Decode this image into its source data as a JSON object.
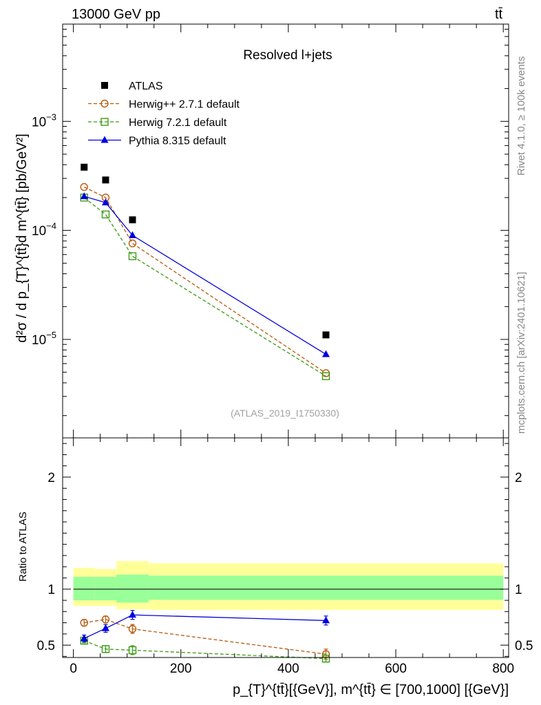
{
  "header": {
    "left": "13000 GeV pp",
    "right": "tt̄"
  },
  "side": {
    "rivet": "Rivet 4.1.0, ≥ 100k events",
    "mcplots": "mcplots.cern.ch [arXiv:2401.10621]"
  },
  "colors": {
    "atlas": "#000000",
    "herwigpp": "#b8580a",
    "herwig7": "#3b9b14",
    "pythia": "#0000e0",
    "band_inner": "#99ff99",
    "band_outer": "#ffff99"
  },
  "chart_data": [
    {
      "type": "scatter",
      "panel": "main",
      "title": "Resolved l+jets",
      "analysis_label": "(ATLAS_2019_I1750330)",
      "ylabel": "d²σ / d p_{T}^{tt̄}d m^{tt̄} [pb/GeV²]",
      "yscale": "log",
      "xlim": [
        -20,
        810
      ],
      "ylim": [
        1.25e-06,
        0.0078
      ],
      "y_ticks": [
        {
          "value": 1e-05,
          "base": "10",
          "exp": "−5"
        },
        {
          "value": 0.0001,
          "base": "10",
          "exp": "−4"
        },
        {
          "value": 0.001,
          "base": "10",
          "exp": "−3"
        }
      ],
      "legend_position": "top-left",
      "series": [
        {
          "name": "ATLAS",
          "key": "atlas",
          "marker": "square-filled",
          "line": "none",
          "x": [
            20,
            60,
            110,
            470
          ],
          "y": [
            0.00038,
            0.00029,
            0.000125,
            1.1e-05
          ]
        },
        {
          "name": "Herwig++ 2.7.1 default",
          "key": "herwigpp",
          "marker": "circle-open",
          "line": "dashed",
          "x": [
            20,
            60,
            110,
            470
          ],
          "y": [
            0.00025,
            0.0002,
            7.6e-05,
            4.9e-06
          ]
        },
        {
          "name": "Herwig 7.2.1 default",
          "key": "herwig7",
          "marker": "square-open",
          "line": "dashed",
          "x": [
            20,
            60,
            110,
            470
          ],
          "y": [
            0.0002,
            0.00014,
            5.8e-05,
            4.6e-06
          ]
        },
        {
          "name": "Pythia 8.315 default",
          "key": "pythia",
          "marker": "triangle-filled",
          "line": "solid",
          "x": [
            20,
            60,
            110,
            470
          ],
          "y": [
            0.000205,
            0.00018,
            9e-05,
            7.3e-06
          ]
        }
      ]
    },
    {
      "type": "scatter",
      "panel": "ratio",
      "ylabel": "Ratio to ATLAS",
      "xlabel": "p_{T}^{tt̄}[{GeV}], m^{tt̄} ∈ [700,1000] [{GeV}]",
      "xlim": [
        -20,
        810
      ],
      "ylim": [
        0.39,
        2.35
      ],
      "x_ticks": [
        0,
        200,
        400,
        600,
        800
      ],
      "x_tick_labels": [
        "0",
        "200",
        "400",
        "600",
        "800"
      ],
      "y_ticks": [
        0.5,
        1,
        2
      ],
      "y_tick_labels": [
        "0.5",
        "1",
        "2"
      ],
      "bands": [
        {
          "x0": 0,
          "x1": 40,
          "inner": [
            0.9,
            1.11
          ],
          "outer": [
            0.85,
            1.19
          ]
        },
        {
          "x0": 40,
          "x1": 80,
          "inner": [
            0.9,
            1.11
          ],
          "outer": [
            0.85,
            1.18
          ]
        },
        {
          "x0": 80,
          "x1": 140,
          "inner": [
            0.88,
            1.13
          ],
          "outer": [
            0.82,
            1.25
          ]
        },
        {
          "x0": 140,
          "x1": 800,
          "inner": [
            0.905,
            1.12
          ],
          "outer": [
            0.815,
            1.23
          ]
        }
      ],
      "series": [
        {
          "name": "Herwig++ 2.7.1 default",
          "key": "herwigpp",
          "marker": "circle-open",
          "line": "dashed",
          "x": [
            20,
            60,
            110,
            470
          ],
          "y": [
            0.7,
            0.73,
            0.645,
            0.42
          ],
          "err": [
            0.03,
            0.03,
            0.04,
            0.045
          ]
        },
        {
          "name": "Herwig 7.2.1 default",
          "key": "herwig7",
          "marker": "square-open",
          "line": "dashed",
          "x": [
            20,
            60,
            110,
            470
          ],
          "y": [
            0.54,
            0.465,
            0.455,
            0.38
          ],
          "err": [
            0.02,
            0.03,
            0.04,
            0.03
          ]
        },
        {
          "name": "Pythia 8.315 default",
          "key": "pythia",
          "marker": "triangle-filled",
          "line": "solid",
          "x": [
            20,
            60,
            110,
            470
          ],
          "y": [
            0.56,
            0.65,
            0.77,
            0.72
          ],
          "err": [
            0.03,
            0.035,
            0.04,
            0.04
          ]
        }
      ]
    }
  ]
}
